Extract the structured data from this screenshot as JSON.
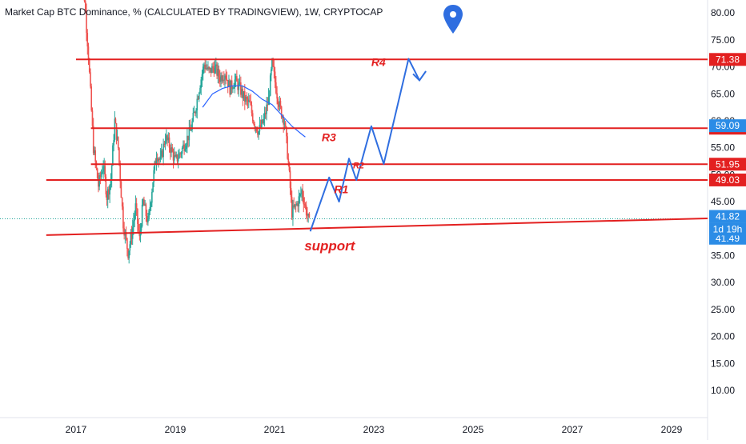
{
  "title": "Market Cap BTC Dominance, % (CALCULATED BY TRADINGVIEW), 1W, CRYPTOCAP",
  "chart_data": {
    "type": "line",
    "subtype": "candlestick-weekly",
    "title": "Market Cap BTC Dominance, % (CALCULATED BY TRADINGVIEW), 1W, CRYPTOCAP",
    "xlabel": "",
    "ylabel": "",
    "ylim": [
      2,
      84
    ],
    "x_ticks": [
      "2017",
      "2019",
      "2021",
      "2023",
      "2025",
      "2027",
      "2029"
    ],
    "y_ticks": [
      "10.00",
      "15.00",
      "20.00",
      "25.00",
      "30.00",
      "35.00",
      "40.00",
      "45.00",
      "50.00",
      "55.00",
      "60.00",
      "65.00",
      "70.00",
      "75.00",
      "80.00"
    ],
    "grid": false,
    "colors": {
      "up": "#26a69a",
      "down": "#ef5350",
      "red": "#e32020",
      "blue": "#2962ff",
      "blueBadge": "#2b8ce6",
      "projection": "#2f6ee0"
    },
    "series": [
      {
        "values": [
          [
            2017.05,
            87.0
          ],
          [
            2017.15,
            85.5
          ],
          [
            2017.25,
            72.0
          ],
          [
            2017.35,
            55.0
          ],
          [
            2017.45,
            48.0
          ],
          [
            2017.55,
            52.0
          ],
          [
            2017.62,
            46.0
          ],
          [
            2017.7,
            49.0
          ],
          [
            2017.78,
            60.0
          ],
          [
            2017.85,
            55.0
          ],
          [
            2017.95,
            41.0
          ],
          [
            2018.05,
            35.5
          ],
          [
            2018.12,
            39.0
          ],
          [
            2018.2,
            44.0
          ],
          [
            2018.28,
            38.0
          ],
          [
            2018.35,
            45.0
          ],
          [
            2018.45,
            41.0
          ],
          [
            2018.55,
            49.0
          ],
          [
            2018.62,
            54.0
          ],
          [
            2018.7,
            52.5
          ],
          [
            2018.8,
            57.0
          ],
          [
            2018.9,
            55.0
          ],
          [
            2019.0,
            52.5
          ],
          [
            2019.1,
            54.0
          ],
          [
            2019.2,
            56.0
          ],
          [
            2019.3,
            58.0
          ],
          [
            2019.4,
            62.0
          ],
          [
            2019.5,
            67.0
          ],
          [
            2019.58,
            70.5
          ],
          [
            2019.68,
            69.0
          ],
          [
            2019.78,
            70.0
          ],
          [
            2019.9,
            68.0
          ],
          [
            2020.0,
            69.0
          ],
          [
            2020.1,
            66.0
          ],
          [
            2020.2,
            67.5
          ],
          [
            2020.3,
            66.0
          ],
          [
            2020.4,
            64.0
          ],
          [
            2020.5,
            63.0
          ],
          [
            2020.58,
            60.0
          ],
          [
            2020.68,
            58.0
          ],
          [
            2020.78,
            60.0
          ],
          [
            2020.88,
            64.0
          ],
          [
            2020.95,
            70.5
          ],
          [
            2021.05,
            65.0
          ],
          [
            2021.12,
            62.0
          ],
          [
            2021.2,
            60.0
          ],
          [
            2021.28,
            52.0
          ],
          [
            2021.35,
            43.0
          ],
          [
            2021.45,
            44.5
          ],
          [
            2021.55,
            47.0
          ],
          [
            2021.62,
            44.0
          ],
          [
            2021.7,
            41.0
          ]
        ]
      }
    ],
    "ma_line": [
      [
        2019.55,
        62.5
      ],
      [
        2019.75,
        65.0
      ],
      [
        2019.95,
        66.0
      ],
      [
        2020.15,
        66.5
      ],
      [
        2020.35,
        66.5
      ],
      [
        2020.55,
        65.5
      ],
      [
        2020.75,
        64.0
      ],
      [
        2020.95,
        63.0
      ],
      [
        2021.15,
        61.0
      ],
      [
        2021.35,
        59.0
      ],
      [
        2021.55,
        57.5
      ],
      [
        2021.62,
        57.0
      ]
    ],
    "levels": [
      {
        "value": 71.38,
        "label": "71.38",
        "x_from": 2017.0
      },
      {
        "value": 58.63,
        "label": "58.63",
        "x_from": 2017.3
      },
      {
        "value": 51.95,
        "label": "51.95",
        "x_from": 2017.3
      },
      {
        "value": 49.03,
        "label": "49.03",
        "x_from": 2016.4
      }
    ],
    "support_line": {
      "x1": 2016.4,
      "y1": 38.8,
      "x2": 2030.0,
      "y2": 41.9
    },
    "projection_path": [
      [
        2021.72,
        39.5
      ],
      [
        2022.1,
        49.5
      ],
      [
        2022.3,
        45.0
      ],
      [
        2022.5,
        53.0
      ],
      [
        2022.65,
        49.0
      ],
      [
        2022.95,
        59.0
      ],
      [
        2023.2,
        52.0
      ],
      [
        2023.7,
        71.5
      ],
      [
        2023.92,
        67.5
      ]
    ],
    "arrow_tip": [
      2024.05,
      69.2
    ],
    "price_badges": [
      {
        "value": 59.09,
        "label": "59.09",
        "color": "#2b8ce6"
      },
      {
        "value": 41.82,
        "label": "41.82",
        "color": "#2b8ce6"
      },
      {
        "value": 41.49,
        "label": "41.49",
        "color": "#2b8ce6"
      }
    ],
    "countdown": "1d 19h",
    "current_price": 41.82,
    "annotations": [
      {
        "text": "R4",
        "x": 2022.95,
        "y": 70.2,
        "size": 14
      },
      {
        "text": "R3",
        "x": 2021.95,
        "y": 56.2,
        "size": 14
      },
      {
        "text": "R2",
        "x": 2022.58,
        "y": 51.2,
        "size": 11
      },
      {
        "text": "R1",
        "x": 2022.2,
        "y": 46.6,
        "size": 14
      },
      {
        "text": "support",
        "x": 2021.6,
        "y": 36.0,
        "size": 17
      }
    ],
    "marker_icon": "map-pin-icon"
  }
}
